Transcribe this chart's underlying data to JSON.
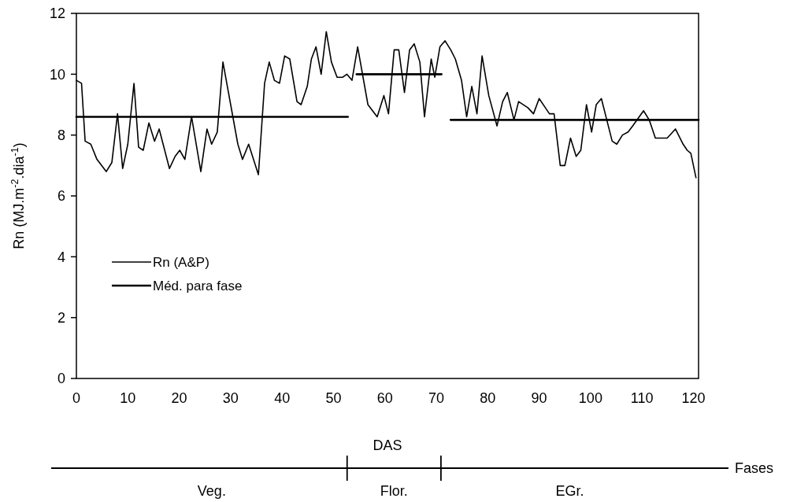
{
  "chart_data": {
    "type": "line",
    "xlabel": "DAS",
    "ylabel": "Rn (MJ.m$^{-2}$.dia$^{-1}$)",
    "xlim": [
      0,
      121
    ],
    "xticks": [
      0,
      10,
      20,
      30,
      40,
      50,
      60,
      70,
      80,
      90,
      100,
      110,
      120
    ],
    "ylim": [
      0,
      12
    ],
    "yticks": [
      0,
      2,
      4,
      6,
      8,
      10,
      12
    ],
    "grid": false,
    "legend": "left",
    "marker": "none",
    "line_style": "solid",
    "series": [
      {
        "name": "Rn (A&P)",
        "color": "#000000",
        "x": [
          0,
          1,
          1.7,
          2.8,
          4,
          5.8,
          6.9,
          8,
          9,
          10,
          11.2,
          12.1,
          13,
          14.1,
          15.2,
          16.1,
          18.1,
          19.2,
          20.1,
          21.1,
          22.4,
          24.2,
          25.4,
          26.3,
          27.4,
          28.5,
          31.4,
          32.3,
          33.5,
          35.4,
          36.6,
          37.5,
          38.5,
          39.5,
          40.5,
          41.5,
          42.9,
          43.7,
          44.9,
          45.7,
          46.6,
          47.6,
          48.6,
          49.6,
          50.7,
          51.8,
          52.6,
          53.6,
          54.7,
          56.7,
          58.5,
          59.8,
          60.7,
          61.8,
          62.7,
          63.8,
          64.8,
          65.7,
          66.8,
          67.7,
          69,
          69.7,
          70.7,
          71.7,
          72.8,
          73.7,
          74.9,
          75.9,
          76.9,
          77.9,
          78.9,
          80.2,
          81.8,
          82.9,
          83.8,
          85.1,
          86,
          87.8,
          88.9,
          90,
          91.2,
          92,
          92.9,
          94.1,
          95,
          96.1,
          97.2,
          98.1,
          99.2,
          100.2,
          101.1,
          102.1,
          104.2,
          105.1,
          106.2,
          107.3,
          108.2,
          110.3,
          111.4,
          112.6,
          114.9,
          116.5,
          118,
          118.8,
          119.5,
          120.5
        ],
        "values": [
          9.8,
          9.7,
          7.8,
          7.7,
          7.2,
          6.8,
          7.1,
          8.7,
          6.9,
          7.7,
          9.7,
          7.6,
          7.5,
          8.4,
          7.8,
          8.2,
          6.9,
          7.3,
          7.5,
          7.2,
          8.6,
          6.8,
          8.2,
          7.7,
          8.1,
          10.4,
          7.7,
          7.2,
          7.7,
          6.7,
          9.7,
          10.4,
          9.8,
          9.7,
          10.6,
          10.5,
          9.1,
          9.0,
          9.6,
          10.5,
          10.9,
          10.0,
          11.4,
          10.4,
          9.9,
          9.9,
          10.0,
          9.8,
          10.9,
          9.0,
          8.6,
          9.3,
          8.7,
          10.8,
          10.8,
          9.4,
          10.8,
          11.0,
          10.4,
          8.6,
          10.5,
          9.9,
          10.9,
          11.1,
          10.8,
          10.5,
          9.8,
          8.6,
          9.6,
          8.7,
          10.6,
          9.3,
          8.3,
          9.1,
          9.4,
          8.5,
          9.1,
          8.9,
          8.7,
          9.2,
          8.9,
          8.7,
          8.7,
          7.0,
          7.0,
          7.9,
          7.3,
          7.5,
          9.0,
          8.1,
          9.0,
          9.2,
          7.8,
          7.7,
          8.0,
          8.1,
          8.3,
          8.8,
          8.5,
          7.9,
          7.9,
          8.2,
          7.7,
          7.5,
          7.4,
          6.6
        ]
      },
      {
        "name": "Méd. para fase",
        "color": "#000000",
        "x": [
          0,
          52.8
        ],
        "values": [
          8.6,
          8.6
        ]
      },
      {
        "color": "#000000",
        "x": [
          54.5,
          71
        ],
        "values": [
          10.0,
          10.0
        ]
      },
      {
        "color": "#000000",
        "x": [
          72.8,
          121
        ],
        "values": [
          8.5,
          8.5
        ]
      }
    ],
    "annotations": [
      "Veg.",
      "Flor.",
      "EGr.",
      "Fases"
    ]
  }
}
